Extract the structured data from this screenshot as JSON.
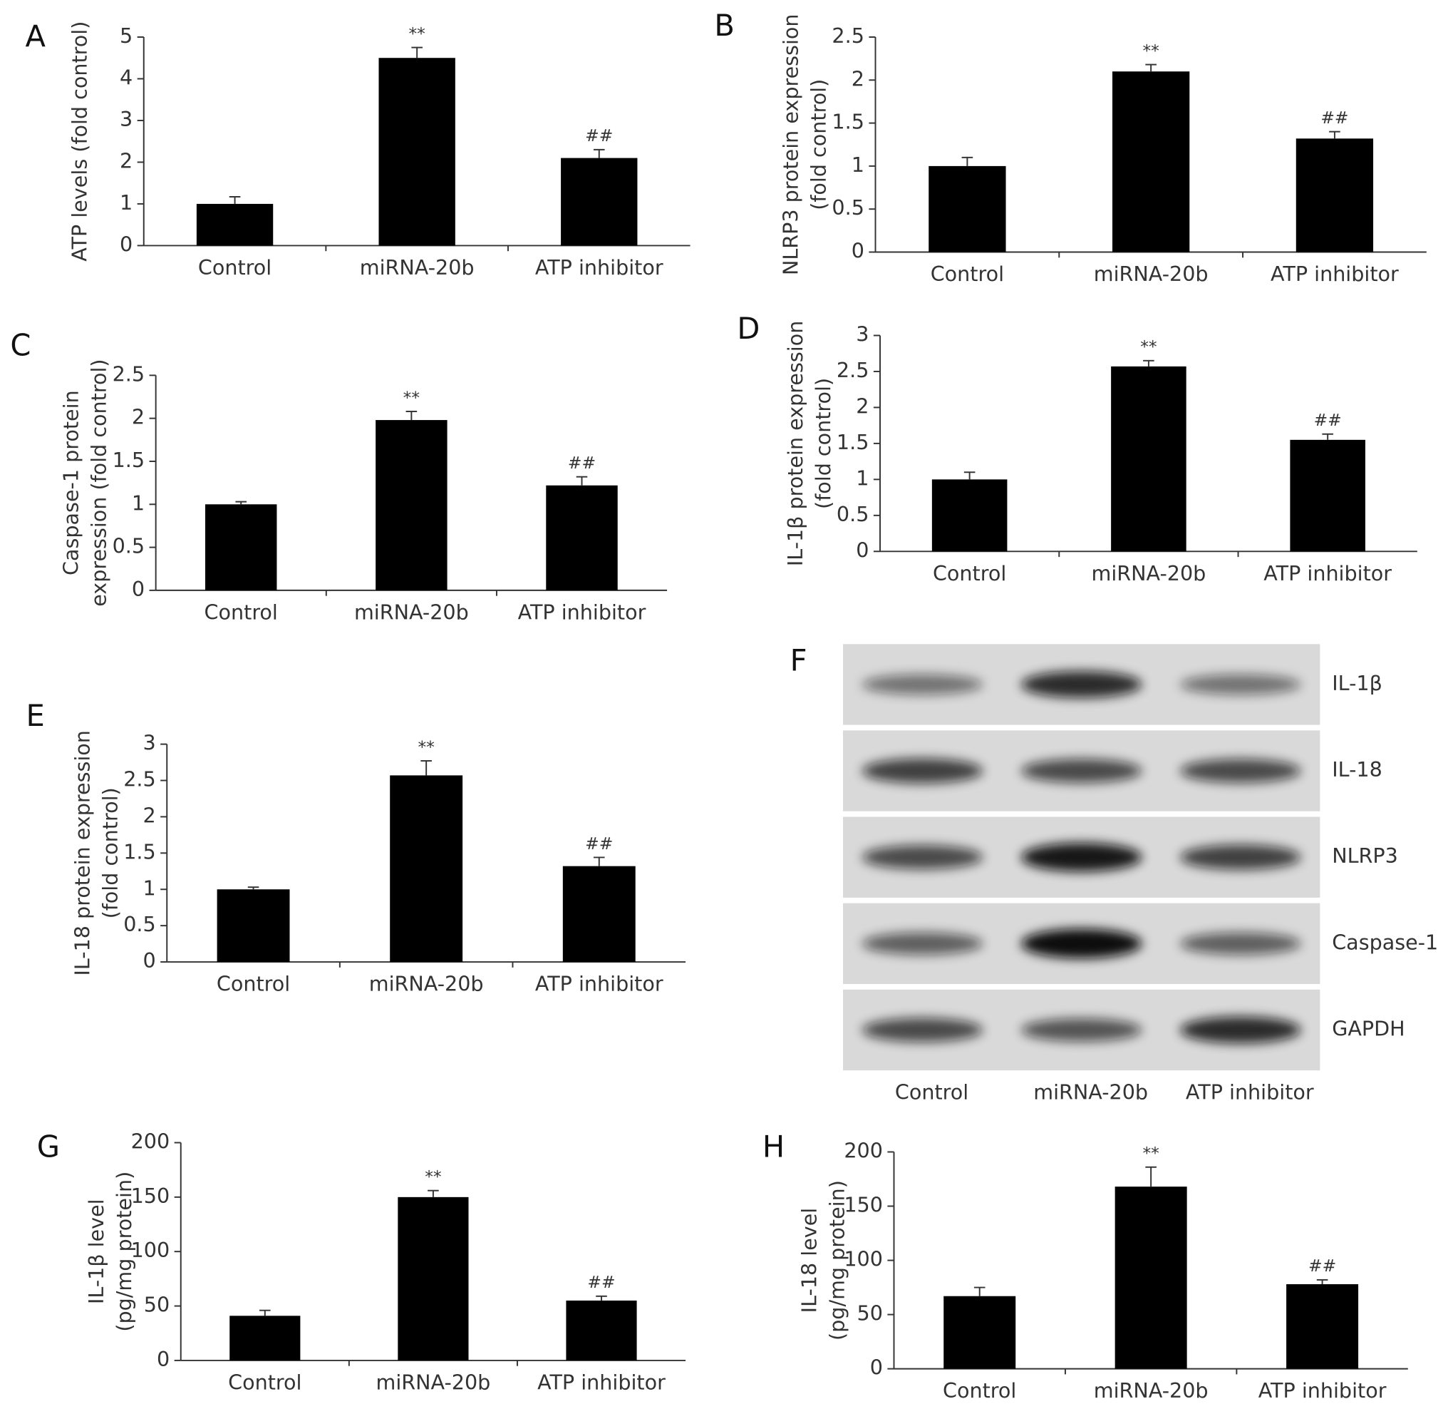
{
  "chart_data": [
    {
      "type": "bar",
      "panel": "A",
      "ylabel": [
        "ATP levels (fold control)"
      ],
      "categories": [
        "Control",
        "miRNA-20b",
        "ATP inhibitor"
      ],
      "values": [
        1.0,
        4.5,
        2.1
      ],
      "errors": [
        0.17,
        0.25,
        0.2
      ],
      "annotations": [
        null,
        "**",
        "##"
      ],
      "ylim": [
        0,
        5
      ],
      "yticks": [
        0,
        1,
        2,
        3,
        4,
        5
      ],
      "color": "#000000"
    },
    {
      "type": "bar",
      "panel": "B",
      "ylabel": [
        "NLRP3 protein expression",
        "(fold control)"
      ],
      "categories": [
        "Control",
        "miRNA-20b",
        "ATP inhibitor"
      ],
      "values": [
        1.0,
        2.1,
        1.32
      ],
      "errors": [
        0.1,
        0.08,
        0.08
      ],
      "annotations": [
        null,
        "**",
        "##"
      ],
      "ylim": [
        0,
        2.5
      ],
      "yticks": [
        0,
        0.5,
        1,
        1.5,
        2,
        2.5
      ],
      "color": "#000000"
    },
    {
      "type": "bar",
      "panel": "C",
      "ylabel": [
        "Caspase-1 protein",
        "expression (fold control)"
      ],
      "categories": [
        "Control",
        "miRNA-20b",
        "ATP inhibitor"
      ],
      "values": [
        1.0,
        1.98,
        1.22
      ],
      "errors": [
        0.03,
        0.1,
        0.1
      ],
      "annotations": [
        null,
        "**",
        "##"
      ],
      "ylim": [
        0,
        2.5
      ],
      "yticks": [
        0,
        0.5,
        1,
        1.5,
        2,
        2.5
      ],
      "color": "#000000"
    },
    {
      "type": "bar",
      "panel": "D",
      "ylabel": [
        "IL-1β protein expression",
        "(fold control)"
      ],
      "categories": [
        "Control",
        "miRNA-20b",
        "ATP inhibitor"
      ],
      "values": [
        1.0,
        2.57,
        1.55
      ],
      "errors": [
        0.1,
        0.08,
        0.08
      ],
      "annotations": [
        null,
        "**",
        "##"
      ],
      "ylim": [
        0,
        3
      ],
      "yticks": [
        0,
        0.5,
        1,
        1.5,
        2,
        2.5,
        3
      ],
      "color": "#000000"
    },
    {
      "type": "bar",
      "panel": "E",
      "ylabel": [
        "IL-18 protein expression",
        "(fold control)"
      ],
      "categories": [
        "Control",
        "miRNA-20b",
        "ATP inhibitor"
      ],
      "values": [
        1.0,
        2.57,
        1.32
      ],
      "errors": [
        0.03,
        0.2,
        0.12
      ],
      "annotations": [
        null,
        "**",
        "##"
      ],
      "ylim": [
        0,
        3
      ],
      "yticks": [
        0,
        0.5,
        1,
        1.5,
        2,
        2.5,
        3
      ],
      "color": "#000000"
    },
    {
      "type": "blot",
      "panel": "F",
      "bands": [
        "IL-1β",
        "IL-18",
        "NLRP3",
        "Caspase-1",
        "GAPDH"
      ],
      "categories": [
        "Control",
        "miRNA-20b",
        "ATP inhibitor"
      ]
    },
    {
      "type": "bar",
      "panel": "G",
      "ylabel": [
        "IL-1β level",
        "(pg/mg protein)"
      ],
      "categories": [
        "Control",
        "miRNA-20b",
        "ATP inhibitor"
      ],
      "values": [
        41,
        150,
        55
      ],
      "errors": [
        5,
        6,
        4
      ],
      "annotations": [
        null,
        "**",
        "##"
      ],
      "ylim": [
        0,
        200
      ],
      "yticks": [
        0,
        50,
        100,
        150,
        200
      ],
      "color": "#000000"
    },
    {
      "type": "bar",
      "panel": "H",
      "ylabel": [
        "IL-18 level",
        "(pg/mg protein)"
      ],
      "categories": [
        "Control",
        "miRNA-20b",
        "ATP inhibitor"
      ],
      "values": [
        67,
        168,
        78
      ],
      "errors": [
        8,
        18,
        4
      ],
      "annotations": [
        null,
        "**",
        "##"
      ],
      "ylim": [
        0,
        200
      ],
      "yticks": [
        0,
        50,
        100,
        150,
        200
      ],
      "color": "#000000"
    }
  ]
}
